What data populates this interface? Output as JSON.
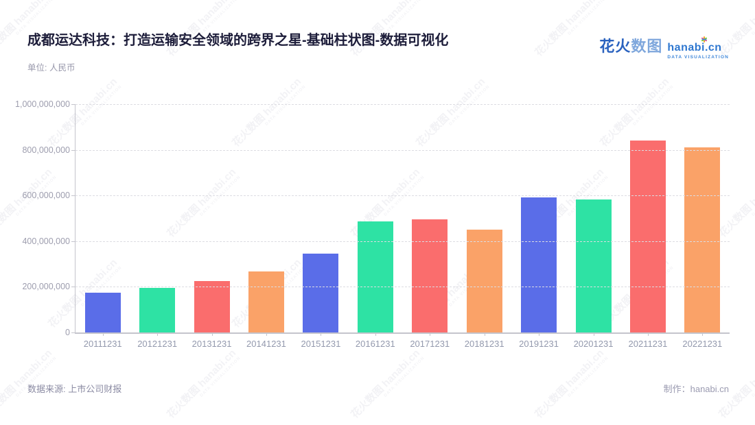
{
  "header": {
    "title": "成都运达科技：打造运输安全领域的跨界之星-基础柱状图-数据可视化",
    "unit_label": "单位: 人民币"
  },
  "logo": {
    "zh_strong": "花火",
    "zh_light": "数图",
    "domain": "hanabi.cn",
    "tagline": "DATA VISUALIZATION",
    "sparkle_colors": [
      "#f5a623",
      "#7ed321",
      "#e94f8a",
      "#4a90d2"
    ]
  },
  "watermark": {
    "text": "花火数图 hanabi.cn",
    "tagline": "DATA VISUALIZATION"
  },
  "footer": {
    "source": "数据来源: 上市公司财报",
    "credit": "制作：hanabi.cn"
  },
  "chart_data": {
    "type": "bar",
    "title": "成都运达科技：打造运输安全领域的跨界之星-基础柱状图-数据可视化",
    "unit": "人民币",
    "categories": [
      "20111231",
      "20121231",
      "20131231",
      "20141231",
      "20151231",
      "20161231",
      "20171231",
      "20181231",
      "20191231",
      "20201231",
      "20211231",
      "20221231"
    ],
    "values": [
      175000000,
      196000000,
      225000000,
      266000000,
      346000000,
      487000000,
      497000000,
      452000000,
      593000000,
      583000000,
      841000000,
      812000000
    ],
    "palette": [
      "#5A6DE8",
      "#2EE2A4",
      "#FA6D6D",
      "#FAA268"
    ],
    "xlabel": "",
    "ylabel": "",
    "ylim": [
      0,
      1000000000
    ],
    "y_tick_values": [
      0,
      200000000,
      400000000,
      600000000,
      800000000,
      1000000000
    ],
    "y_tick_labels": [
      "0",
      "200,000,000",
      "400,000,000",
      "600,000,000",
      "800,000,000",
      "1,000,000,000"
    ],
    "grid": true,
    "grid_style": "dashed",
    "legend": false
  }
}
